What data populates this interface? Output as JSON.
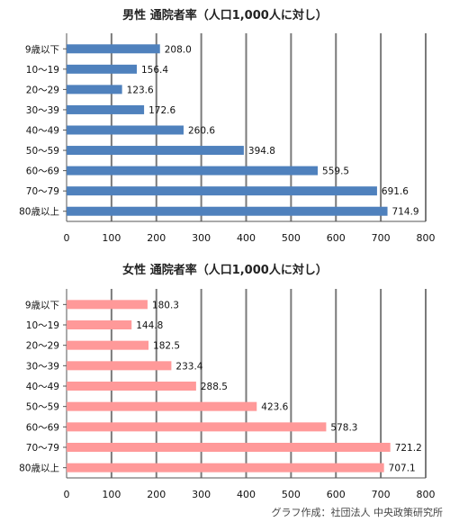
{
  "chart_data": [
    {
      "type": "bar",
      "orientation": "horizontal",
      "title": "男性 通院者率（人口1,000人に対し）",
      "categories": [
        "9歳以下",
        "10～19",
        "20～29",
        "30～39",
        "40～49",
        "50～59",
        "60～69",
        "70～79",
        "80歳以上"
      ],
      "values": [
        208.0,
        156.4,
        123.6,
        172.6,
        260.6,
        394.8,
        559.5,
        691.6,
        714.9
      ],
      "xlim": [
        0,
        800
      ],
      "ticks": [
        0,
        100,
        200,
        300,
        400,
        500,
        600,
        700,
        800
      ],
      "grid": true,
      "color": "#4f81bd"
    },
    {
      "type": "bar",
      "orientation": "horizontal",
      "title": "女性 通院者率（人口1,000人に対し）",
      "categories": [
        "9歳以下",
        "10～19",
        "20～29",
        "30～39",
        "40～49",
        "50～59",
        "60～69",
        "70～79",
        "80歳以上"
      ],
      "values": [
        180.3,
        144.8,
        182.5,
        233.4,
        288.5,
        423.6,
        578.3,
        721.2,
        707.1
      ],
      "xlim": [
        0,
        800
      ],
      "ticks": [
        0,
        100,
        200,
        300,
        400,
        500,
        600,
        700,
        800
      ],
      "grid": true,
      "color": "#ff9999"
    }
  ],
  "credit": "グラフ作成：社団法人 中央政策研究所"
}
